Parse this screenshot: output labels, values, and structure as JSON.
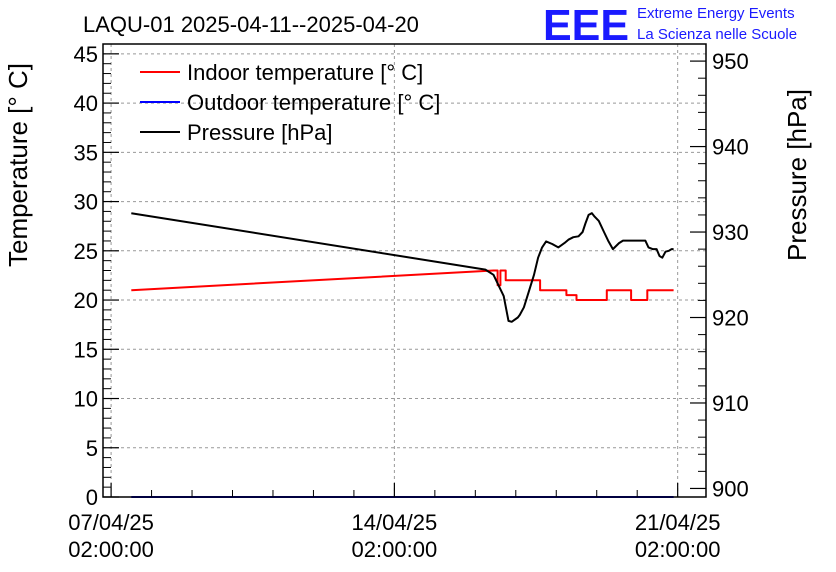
{
  "chart_data": {
    "type": "line",
    "title": "LAQU-01 2025-04-11--2025-04-20",
    "ylabel_left": "Temperature [° C]",
    "ylabel_right": "Pressure [hPa]",
    "xlabel": "",
    "x_unit": "days since 07/04/25 02:00:00",
    "xlim": [
      -0.2,
      14.7
    ],
    "ylim_left": [
      0,
      46
    ],
    "ylim_right": [
      899,
      952
    ],
    "y_ticks_left": [
      0,
      5,
      10,
      15,
      20,
      25,
      30,
      35,
      40,
      45
    ],
    "y_ticks_right": [
      900,
      910,
      920,
      930,
      940,
      950
    ],
    "x_ticks": [
      {
        "value": 0,
        "line1": "07/04/25",
        "line2": "02:00:00"
      },
      {
        "value": 7,
        "line1": "14/04/25",
        "line2": "02:00:00"
      },
      {
        "value": 14,
        "line1": "21/04/25",
        "line2": "02:00:00"
      }
    ],
    "grid": true,
    "legend_position": "top-left",
    "series": [
      {
        "name": "Indoor temperature [° C]",
        "color": "#ff0000",
        "axis": "left",
        "x": [
          0.5,
          9.45,
          9.45,
          9.55,
          9.55,
          9.62,
          9.62,
          9.75,
          9.75,
          10.05,
          10.05,
          10.6,
          10.6,
          10.9,
          10.9,
          11.25,
          11.25,
          11.5,
          11.5,
          12.05,
          12.05,
          12.25,
          12.25,
          12.5,
          12.5,
          12.85,
          12.85,
          13.25,
          13.25,
          13.55,
          13.55,
          13.9
        ],
        "values": [
          21.0,
          23.0,
          23.0,
          23.0,
          21.5,
          21.5,
          23.0,
          23.0,
          22.0,
          22.0,
          22.0,
          22.0,
          21.0,
          21.0,
          21.0,
          21.0,
          20.5,
          20.5,
          20.0,
          20.0,
          20.0,
          20.0,
          21.0,
          21.0,
          21.0,
          21.0,
          20.0,
          20.0,
          21.0,
          21.0,
          21.0,
          21.0
        ]
      },
      {
        "name": "Outdoor temperature [° C]",
        "color": "#0000ff",
        "axis": "left",
        "x": [
          0.5,
          13.9
        ],
        "values": [
          0,
          0
        ]
      },
      {
        "name": "Pressure [hPa]",
        "color": "#000000",
        "axis": "right",
        "x": [
          0.5,
          9.25,
          9.45,
          9.6,
          9.7,
          9.82,
          9.9,
          10.05,
          10.1,
          10.2,
          10.32,
          10.45,
          10.55,
          10.65,
          10.75,
          10.9,
          11.05,
          11.2,
          11.3,
          11.42,
          11.55,
          11.65,
          11.72,
          11.8,
          11.88,
          11.95,
          12.05,
          12.1,
          12.18,
          12.28,
          12.4,
          12.55,
          12.65,
          12.75,
          12.85,
          12.95,
          13.05,
          13.2,
          13.28,
          13.38,
          13.48,
          13.55,
          13.62,
          13.7,
          13.78,
          13.85,
          13.9
        ],
        "values": [
          932.2,
          925.6,
          925.0,
          923.5,
          922.5,
          919.6,
          919.5,
          920.0,
          920.3,
          921.2,
          923.0,
          925.0,
          927.0,
          928.2,
          928.9,
          928.6,
          928.2,
          928.7,
          929.1,
          929.4,
          929.5,
          930.0,
          931.0,
          932.0,
          932.2,
          931.8,
          931.3,
          930.8,
          930.0,
          929.0,
          928.0,
          928.7,
          929.0,
          929.0,
          929.0,
          929.0,
          929.0,
          929.0,
          928.2,
          928.0,
          928.0,
          927.2,
          927.0,
          927.7,
          927.8,
          928.0,
          928.0
        ]
      }
    ]
  },
  "logo": {
    "letters": "EEE",
    "line1": "Extreme Energy Events",
    "line2": "La Scienza nelle Scuole"
  }
}
